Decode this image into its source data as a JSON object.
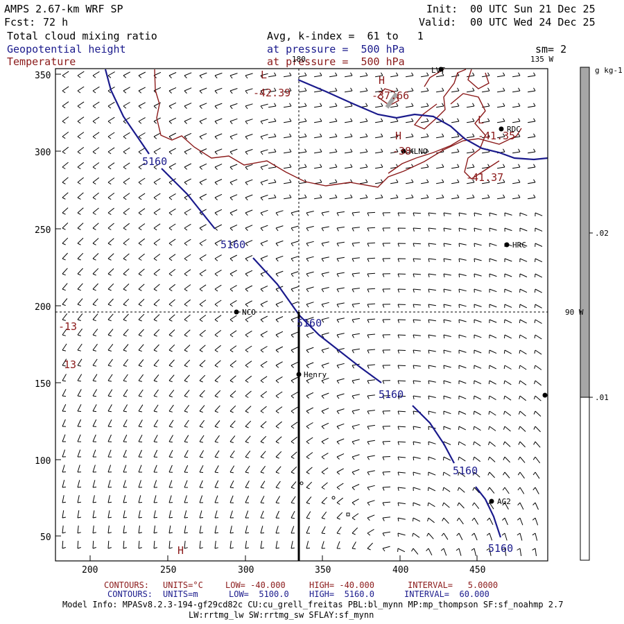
{
  "header": {
    "model": "AMPS 2.67-km WRF SP",
    "fcst_label": "Fcst:",
    "fcst_value": "72 h",
    "init_label": "Init:",
    "init_value": "00 UTC Sun 21 Dec 25",
    "valid_label": "Valid:",
    "valid_value": "00 UTC Wed 24 Dec 25",
    "field1": "Total cloud mixing ratio",
    "field2": "Geopotential height",
    "field3": "Temperature",
    "avg": "Avg, k-index =  61 to   1",
    "pressure1": "at pressure =  500 hPa",
    "pressure2": "at pressure =  500 hPa",
    "smooth": "sm= 2"
  },
  "map": {
    "meridian_labels": {
      "top": "180",
      "right_top": "135 W",
      "right_mid": "90 W"
    },
    "stations": [
      {
        "id": "LVT",
        "label": "LVT"
      },
      {
        "id": "RDC",
        "label": "RDC"
      },
      {
        "id": "KLNO",
        "label": "KLNO"
      },
      {
        "id": "HRC",
        "label": "HRC"
      },
      {
        "id": "NCO",
        "label": "NCO"
      },
      {
        "id": "Henry",
        "label": "Henry"
      },
      {
        "id": "AG2",
        "label": "AG2"
      }
    ],
    "height_labels": [
      "5160",
      "5160",
      "5160",
      "5160",
      "5160",
      "5160"
    ],
    "temp_labels": {
      "L1": "L",
      "v1": "-42.39",
      "H1": "H",
      "v2": "-37.66",
      "L2": "L",
      "v3": "-41.35",
      "H2": "H",
      "v4": "-38",
      "v5": "-41.37",
      "v6": "-13",
      "v7": "13",
      "H3": "H"
    },
    "x_ticks": [
      "200",
      "250",
      "300",
      "350",
      "400",
      "450"
    ],
    "y_ticks": [
      "350",
      "300",
      "250",
      "200",
      "150",
      "100",
      "50"
    ]
  },
  "colorbar": {
    "units": "g kg-1",
    "labels": [
      ".02",
      ".01"
    ],
    "colors": {
      "gray": "#a6a6a6",
      "white": "#ffffff"
    }
  },
  "footer": {
    "c1_label": "CONTOURS:",
    "c1_units": "UNITS=°C",
    "c1_low": "LOW= -40.000",
    "c1_high": "HIGH= -40.000",
    "c1_interval": "INTERVAL=   5.0000",
    "c2_label": "CONTOURS:",
    "c2_units": "UNITS=m",
    "c2_low": "LOW=  5100.0",
    "c2_high": "HIGH=  5160.0",
    "c2_interval": "INTERVAL=  60.000",
    "info1": "Model Info: MPASv8.2.3-194-gf29cd82c CU:cu_grell_freitas PBL:bl_mynn MP:mp_thompson SF:sf_noahmp 2.7",
    "info2": "LW:rrtmg_lw SW:rrtmg_sw SFLAY:sf_mynn"
  },
  "colors": {
    "navy": "#1a1a8c",
    "maroon": "#8b1a1a",
    "frame": "#000000"
  }
}
